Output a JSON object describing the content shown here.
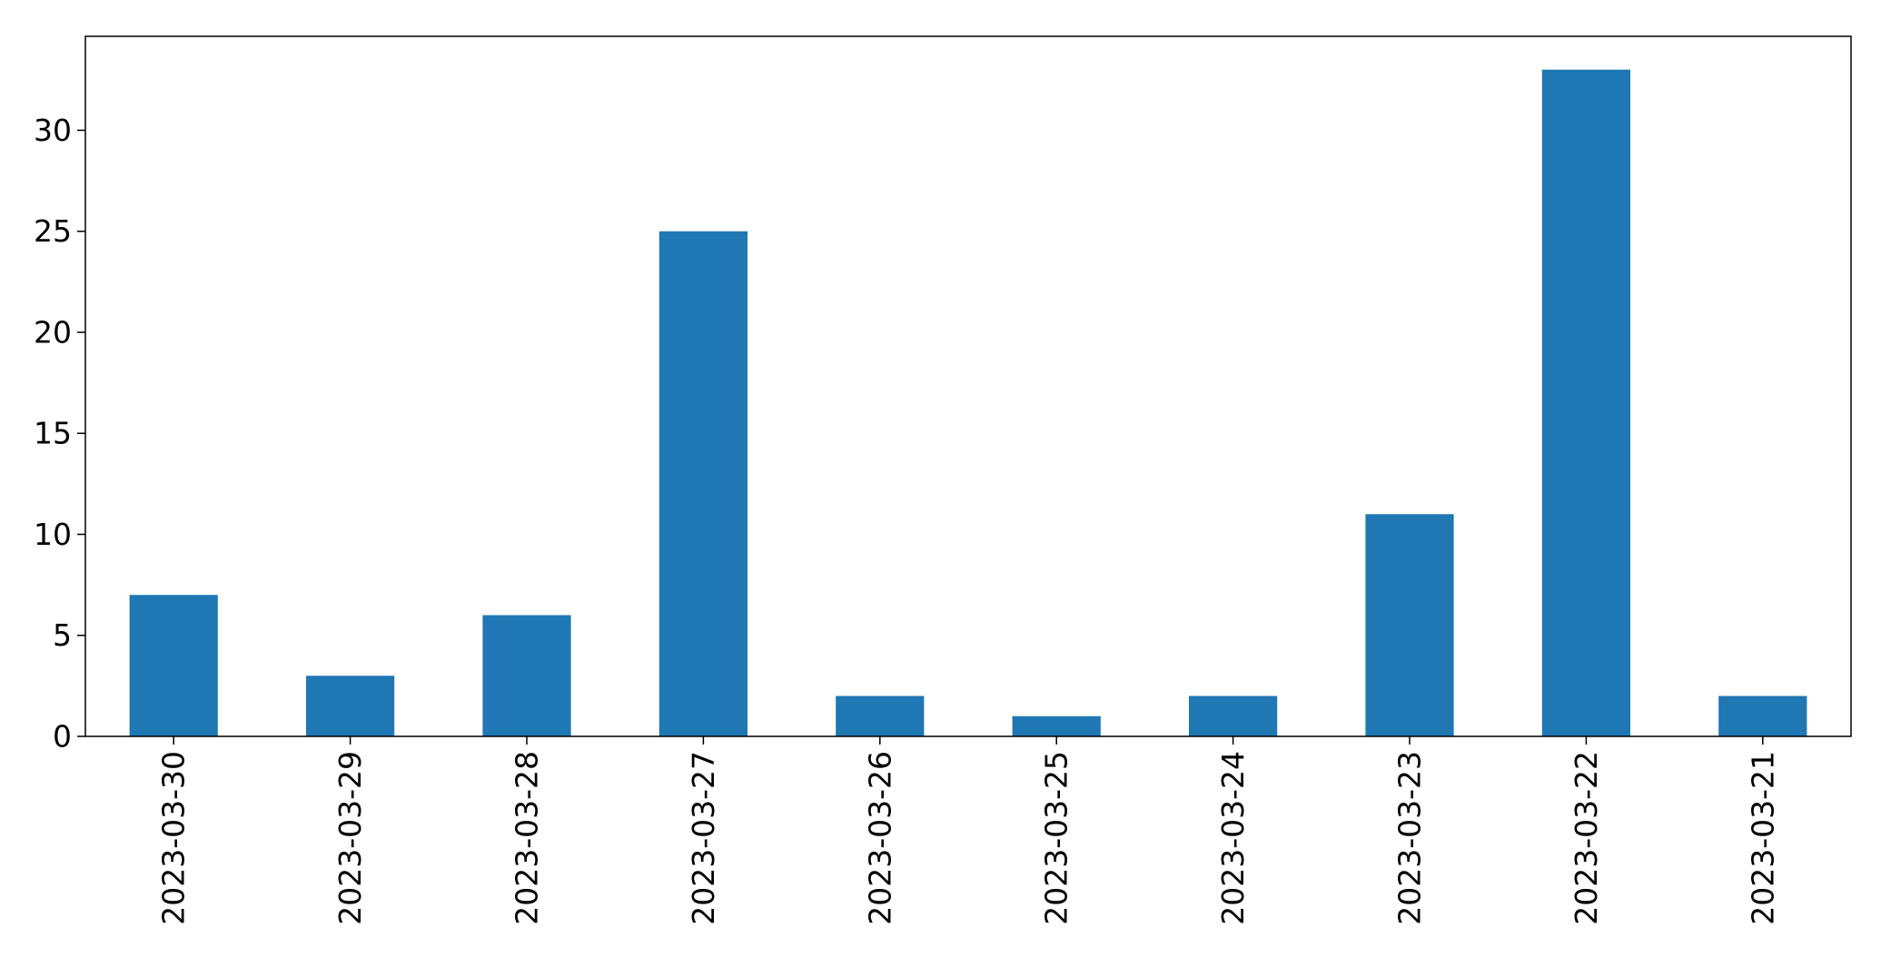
{
  "chart_data": {
    "type": "bar",
    "categories": [
      "2023-03-30",
      "2023-03-29",
      "2023-03-28",
      "2023-03-27",
      "2023-03-26",
      "2023-03-25",
      "2023-03-24",
      "2023-03-23",
      "2023-03-22",
      "2023-03-21"
    ],
    "values": [
      7,
      3,
      6,
      25,
      2,
      1,
      2,
      11,
      33,
      2
    ],
    "title": "",
    "xlabel": "",
    "ylabel": "",
    "ylim": [
      0,
      34.65
    ],
    "yticks": [
      0,
      5,
      10,
      15,
      20,
      25,
      30
    ],
    "grid": false,
    "legend": "none",
    "bar_color": "#1f77b4"
  }
}
